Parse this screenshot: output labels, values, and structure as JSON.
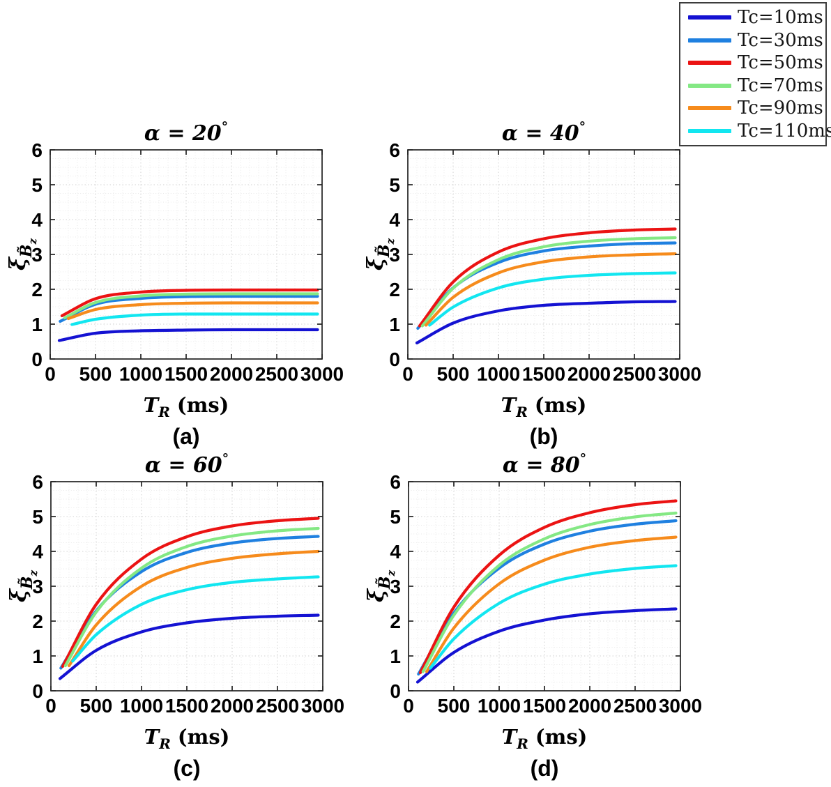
{
  "figure": {
    "background": "#ffffff",
    "frame_color": "#222222",
    "grid_major_color": "#d2d2d2",
    "grid_minor_color": "#eaeaea",
    "text_color": "#000000"
  },
  "legend": {
    "position": "top-right",
    "entries": [
      {
        "label": "Tc=10ms",
        "color": "#1412d2"
      },
      {
        "label": "Tc=30ms",
        "color": "#1f80e0"
      },
      {
        "label": "Tc=50ms",
        "color": "#eb1313"
      },
      {
        "label": "Tc=70ms",
        "color": "#84e884"
      },
      {
        "label": "Tc=90ms",
        "color": "#f68b1c"
      },
      {
        "label": "Tc=110ms",
        "color": "#12e6f0"
      }
    ]
  },
  "chart_data": [
    {
      "id": "a",
      "type": "line",
      "title": "α = 20°",
      "sublabel": "(a)",
      "xlabel": {
        "symbol": "T",
        "subscript": "R",
        "suffix": " (ms)"
      },
      "ylabel": {
        "symbol": "ξ",
        "subscript": "B̃",
        "subsubscript": "z"
      },
      "xlim": [
        0,
        3000
      ],
      "ylim": [
        0,
        6
      ],
      "xticks": [
        0,
        500,
        1000,
        1500,
        2000,
        2500,
        3000
      ],
      "yticks": [
        0,
        1,
        2,
        3,
        4,
        5,
        6
      ],
      "grid": "major and minor, dotted",
      "series": [
        {
          "name": "Tc=10ms",
          "color": "#1412d2",
          "points": [
            [
              100,
              0.53
            ],
            [
              500,
              0.74
            ],
            [
              1000,
              0.81
            ],
            [
              1500,
              0.83
            ],
            [
              2000,
              0.84
            ],
            [
              2500,
              0.84
            ],
            [
              2950,
              0.84
            ]
          ]
        },
        {
          "name": "Tc=30ms",
          "color": "#1f80e0",
          "points": [
            [
              110,
              1.08
            ],
            [
              500,
              1.57
            ],
            [
              1000,
              1.74
            ],
            [
              1500,
              1.79
            ],
            [
              2000,
              1.8
            ],
            [
              2500,
              1.8
            ],
            [
              2950,
              1.8
            ]
          ]
        },
        {
          "name": "Tc=50ms",
          "color": "#eb1313",
          "points": [
            [
              130,
              1.24
            ],
            [
              500,
              1.73
            ],
            [
              1000,
              1.92
            ],
            [
              1500,
              1.97
            ],
            [
              2000,
              1.98
            ],
            [
              2500,
              1.98
            ],
            [
              2950,
              1.98
            ]
          ]
        },
        {
          "name": "Tc=70ms",
          "color": "#84e884",
          "points": [
            [
              160,
              1.18
            ],
            [
              500,
              1.62
            ],
            [
              1000,
              1.81
            ],
            [
              1500,
              1.86
            ],
            [
              2000,
              1.87
            ],
            [
              2500,
              1.87
            ],
            [
              2950,
              1.87
            ]
          ]
        },
        {
          "name": "Tc=90ms",
          "color": "#f68b1c",
          "points": [
            [
              200,
              1.16
            ],
            [
              500,
              1.42
            ],
            [
              1000,
              1.56
            ],
            [
              1500,
              1.6
            ],
            [
              2000,
              1.61
            ],
            [
              2500,
              1.61
            ],
            [
              2950,
              1.61
            ]
          ]
        },
        {
          "name": "Tc=110ms",
          "color": "#12e6f0",
          "points": [
            [
              240,
              0.99
            ],
            [
              500,
              1.14
            ],
            [
              1000,
              1.26
            ],
            [
              1500,
              1.29
            ],
            [
              2000,
              1.29
            ],
            [
              2500,
              1.29
            ],
            [
              2950,
              1.29
            ]
          ]
        }
      ]
    },
    {
      "id": "b",
      "type": "line",
      "title": "α = 40°",
      "sublabel": "(b)",
      "xlabel": {
        "symbol": "T",
        "subscript": "R",
        "suffix": " (ms)"
      },
      "ylabel": {
        "symbol": "ξ",
        "subscript": "B̃",
        "subsubscript": "z"
      },
      "xlim": [
        0,
        3000
      ],
      "ylim": [
        0,
        6
      ],
      "xticks": [
        0,
        500,
        1000,
        1500,
        2000,
        2500,
        3000
      ],
      "yticks": [
        0,
        1,
        2,
        3,
        4,
        5,
        6
      ],
      "grid": "major and minor, dotted",
      "series": [
        {
          "name": "Tc=10ms",
          "color": "#1412d2",
          "points": [
            [
              100,
              0.46
            ],
            [
              500,
              1.03
            ],
            [
              1000,
              1.38
            ],
            [
              1500,
              1.54
            ],
            [
              2000,
              1.6
            ],
            [
              2500,
              1.64
            ],
            [
              2950,
              1.65
            ]
          ]
        },
        {
          "name": "Tc=30ms",
          "color": "#1f80e0",
          "points": [
            [
              110,
              0.88
            ],
            [
              500,
              2.04
            ],
            [
              1000,
              2.77
            ],
            [
              1500,
              3.1
            ],
            [
              2000,
              3.24
            ],
            [
              2500,
              3.31
            ],
            [
              2950,
              3.33
            ]
          ]
        },
        {
          "name": "Tc=50ms",
          "color": "#eb1313",
          "points": [
            [
              130,
              0.95
            ],
            [
              500,
              2.21
            ],
            [
              1000,
              3.07
            ],
            [
              1500,
              3.45
            ],
            [
              2000,
              3.62
            ],
            [
              2500,
              3.7
            ],
            [
              2950,
              3.73
            ]
          ]
        },
        {
          "name": "Tc=70ms",
          "color": "#84e884",
          "points": [
            [
              160,
              0.95
            ],
            [
              500,
              2.03
            ],
            [
              1000,
              2.85
            ],
            [
              1500,
              3.22
            ],
            [
              2000,
              3.38
            ],
            [
              2500,
              3.45
            ],
            [
              2950,
              3.48
            ]
          ]
        },
        {
          "name": "Tc=90ms",
          "color": "#f68b1c",
          "points": [
            [
              200,
              0.97
            ],
            [
              500,
              1.77
            ],
            [
              1000,
              2.47
            ],
            [
              1500,
              2.79
            ],
            [
              2000,
              2.93
            ],
            [
              2500,
              2.99
            ],
            [
              2950,
              3.02
            ]
          ]
        },
        {
          "name": "Tc=110ms",
          "color": "#12e6f0",
          "points": [
            [
              240,
              0.97
            ],
            [
              500,
              1.49
            ],
            [
              1000,
              2.04
            ],
            [
              1500,
              2.29
            ],
            [
              2000,
              2.4
            ],
            [
              2500,
              2.45
            ],
            [
              2950,
              2.47
            ]
          ]
        }
      ]
    },
    {
      "id": "c",
      "type": "line",
      "title": "α = 60°",
      "sublabel": "(c)",
      "xlabel": {
        "symbol": "T",
        "subscript": "R",
        "suffix": " (ms)"
      },
      "ylabel": {
        "symbol": "ξ",
        "subscript": "B̃",
        "subsubscript": "z"
      },
      "xlim": [
        0,
        3000
      ],
      "ylim": [
        0,
        6
      ],
      "xticks": [
        0,
        500,
        1000,
        1500,
        2000,
        2500,
        3000
      ],
      "yticks": [
        0,
        1,
        2,
        3,
        4,
        5,
        6
      ],
      "grid": "major and minor, dotted",
      "series": [
        {
          "name": "Tc=10ms",
          "color": "#1412d2",
          "points": [
            [
              100,
              0.35
            ],
            [
              500,
              1.16
            ],
            [
              1000,
              1.69
            ],
            [
              1500,
              1.95
            ],
            [
              2000,
              2.08
            ],
            [
              2500,
              2.14
            ],
            [
              2950,
              2.17
            ]
          ]
        },
        {
          "name": "Tc=30ms",
          "color": "#1f80e0",
          "points": [
            [
              110,
              0.65
            ],
            [
              500,
              2.29
            ],
            [
              1000,
              3.42
            ],
            [
              1500,
              3.97
            ],
            [
              2000,
              4.24
            ],
            [
              2500,
              4.37
            ],
            [
              2950,
              4.43
            ]
          ]
        },
        {
          "name": "Tc=50ms",
          "color": "#eb1313",
          "points": [
            [
              130,
              0.7
            ],
            [
              500,
              2.48
            ],
            [
              1000,
              3.78
            ],
            [
              1500,
              4.42
            ],
            [
              2000,
              4.73
            ],
            [
              2500,
              4.88
            ],
            [
              2950,
              4.95
            ]
          ]
        },
        {
          "name": "Tc=70ms",
          "color": "#84e884",
          "points": [
            [
              160,
              0.72
            ],
            [
              500,
              2.26
            ],
            [
              1000,
              3.52
            ],
            [
              1500,
              4.14
            ],
            [
              2000,
              4.44
            ],
            [
              2500,
              4.59
            ],
            [
              2950,
              4.66
            ]
          ]
        },
        {
          "name": "Tc=90ms",
          "color": "#f68b1c",
          "points": [
            [
              200,
              0.72
            ],
            [
              500,
              1.89
            ],
            [
              1000,
              3.0
            ],
            [
              1500,
              3.54
            ],
            [
              2000,
              3.8
            ],
            [
              2500,
              3.93
            ],
            [
              2950,
              4.0
            ]
          ]
        },
        {
          "name": "Tc=110ms",
          "color": "#12e6f0",
          "points": [
            [
              240,
              0.85
            ],
            [
              500,
              1.61
            ],
            [
              1000,
              2.48
            ],
            [
              1500,
              2.9
            ],
            [
              2000,
              3.11
            ],
            [
              2500,
              3.21
            ],
            [
              2950,
              3.27
            ]
          ]
        }
      ]
    },
    {
      "id": "d",
      "type": "line",
      "title": "α = 80°",
      "sublabel": "(d)",
      "xlabel": {
        "symbol": "T",
        "subscript": "R",
        "suffix": " (ms)"
      },
      "ylabel": {
        "symbol": "ξ",
        "subscript": "B̃",
        "subsubscript": "z"
      },
      "xlim": [
        0,
        3000
      ],
      "ylim": [
        0,
        6
      ],
      "xticks": [
        0,
        500,
        1000,
        1500,
        2000,
        2500,
        3000
      ],
      "yticks": [
        0,
        1,
        2,
        3,
        4,
        5,
        6
      ],
      "grid": "major and minor, dotted",
      "series": [
        {
          "name": "Tc=10ms",
          "color": "#1412d2",
          "points": [
            [
              100,
              0.25
            ],
            [
              500,
              1.1
            ],
            [
              1000,
              1.71
            ],
            [
              1500,
              2.03
            ],
            [
              2000,
              2.21
            ],
            [
              2500,
              2.3
            ],
            [
              2950,
              2.35
            ]
          ]
        },
        {
          "name": "Tc=30ms",
          "color": "#1f80e0",
          "points": [
            [
              110,
              0.48
            ],
            [
              500,
              2.23
            ],
            [
              1000,
              3.52
            ],
            [
              1500,
              4.21
            ],
            [
              2000,
              4.58
            ],
            [
              2500,
              4.78
            ],
            [
              2950,
              4.88
            ]
          ]
        },
        {
          "name": "Tc=50ms",
          "color": "#eb1313",
          "points": [
            [
              130,
              0.52
            ],
            [
              500,
              2.4
            ],
            [
              1000,
              3.89
            ],
            [
              1500,
              4.69
            ],
            [
              2000,
              5.11
            ],
            [
              2500,
              5.34
            ],
            [
              2950,
              5.45
            ]
          ]
        },
        {
          "name": "Tc=70ms",
          "color": "#84e884",
          "points": [
            [
              160,
              0.55
            ],
            [
              500,
              2.17
            ],
            [
              1000,
              3.6
            ],
            [
              1500,
              4.36
            ],
            [
              2000,
              4.77
            ],
            [
              2500,
              4.99
            ],
            [
              2950,
              5.1
            ]
          ]
        },
        {
          "name": "Tc=90ms",
          "color": "#f68b1c",
          "points": [
            [
              200,
              0.55
            ],
            [
              500,
              1.8
            ],
            [
              1000,
              3.07
            ],
            [
              1500,
              3.75
            ],
            [
              2000,
              4.12
            ],
            [
              2500,
              4.31
            ],
            [
              2950,
              4.41
            ]
          ]
        },
        {
          "name": "Tc=110ms",
          "color": "#12e6f0",
          "points": [
            [
              240,
              0.65
            ],
            [
              500,
              1.49
            ],
            [
              1000,
              2.51
            ],
            [
              1500,
              3.06
            ],
            [
              2000,
              3.35
            ],
            [
              2500,
              3.51
            ],
            [
              2950,
              3.59
            ]
          ]
        }
      ]
    }
  ]
}
